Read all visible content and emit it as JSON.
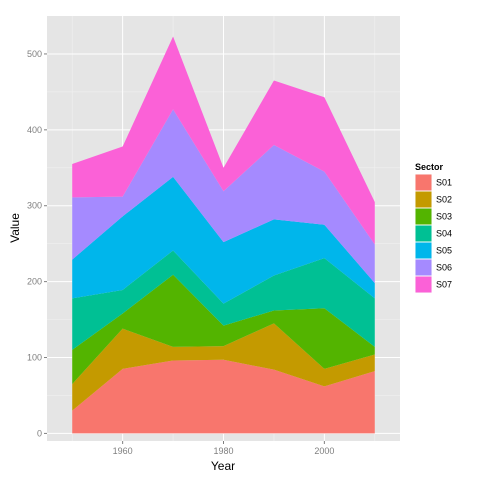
{
  "chart_data": {
    "type": "area",
    "stacked": true,
    "x": [
      1950,
      1960,
      1970,
      1980,
      1990,
      2000,
      2010
    ],
    "xlabel": "Year",
    "ylabel": "Value",
    "xlim": [
      1945,
      2015
    ],
    "ylim": [
      -10,
      550
    ],
    "xticks": [
      1960,
      1980,
      2000
    ],
    "yticks": [
      0,
      100,
      200,
      300,
      400,
      500
    ],
    "grid": true,
    "legend": {
      "title": "Sector",
      "position": "right"
    },
    "series": [
      {
        "name": "S01",
        "color": "#F8766D",
        "values": [
          30,
          85,
          96,
          97,
          84,
          62,
          82
        ]
      },
      {
        "name": "S02",
        "color": "#C49A00",
        "values": [
          35,
          53,
          18,
          18,
          61,
          23,
          22
        ]
      },
      {
        "name": "S03",
        "color": "#53B400",
        "values": [
          45,
          20,
          95,
          27,
          17,
          80,
          10
        ]
      },
      {
        "name": "S04",
        "color": "#00C094",
        "values": [
          68,
          31,
          32,
          29,
          46,
          66,
          64
        ]
      },
      {
        "name": "S05",
        "color": "#00B6EB",
        "values": [
          51,
          97,
          97,
          81,
          74,
          44,
          20
        ]
      },
      {
        "name": "S06",
        "color": "#A58AFF",
        "values": [
          82,
          26,
          89,
          67,
          98,
          70,
          51
        ]
      },
      {
        "name": "S07",
        "color": "#FB61D7",
        "values": [
          44,
          66,
          96,
          31,
          85,
          98,
          56
        ]
      }
    ]
  }
}
